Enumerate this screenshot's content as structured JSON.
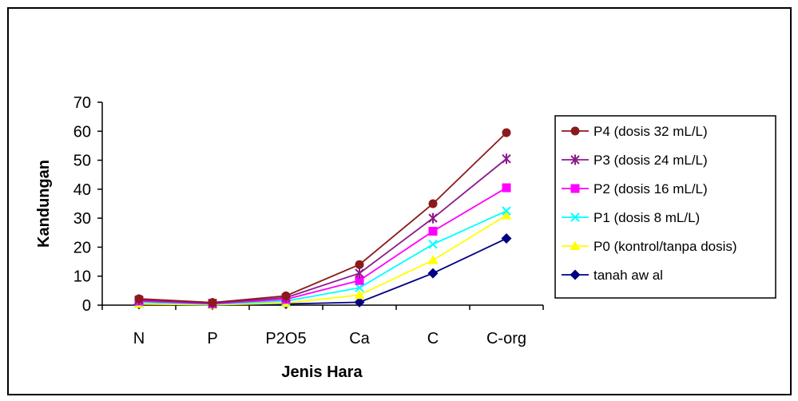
{
  "chart_data": {
    "type": "line",
    "title": "",
    "xlabel": "Jenis Hara",
    "ylabel": "Kandungan",
    "categories": [
      "N",
      "P",
      "P2O5",
      "Ca",
      "C",
      "C-org"
    ],
    "ylim": [
      0,
      70
    ],
    "yticks": [
      0,
      10,
      20,
      30,
      40,
      50,
      60,
      70
    ],
    "grid": false,
    "legend_position": "right",
    "series": [
      {
        "name": "P4 (dosis 32 mL/L)",
        "color": "#8B1A1A",
        "marker": "circle",
        "values": [
          2.2,
          0.9,
          3.2,
          14.0,
          35.0,
          59.5
        ]
      },
      {
        "name": "P3 (dosis 24 mL/L)",
        "color": "#8B1C8B",
        "marker": "asterisk",
        "values": [
          1.8,
          0.7,
          2.6,
          11.0,
          30.0,
          50.5
        ]
      },
      {
        "name": "P2 (dosis 16 mL/L)",
        "color": "#FF00FF",
        "marker": "square",
        "values": [
          1.4,
          0.5,
          2.0,
          8.5,
          25.5,
          40.5
        ]
      },
      {
        "name": "P1 (dosis 8 mL/L)",
        "color": "#00FFFF",
        "marker": "x",
        "values": [
          1.0,
          0.3,
          1.4,
          6.0,
          21.0,
          32.5
        ]
      },
      {
        "name": "P0 (kontrol/tanpa dosis)",
        "color": "#FFFF00",
        "marker": "triangle",
        "values": [
          0.4,
          0.1,
          0.7,
          3.5,
          15.5,
          31.0
        ]
      },
      {
        "name": "tanah aw al",
        "color": "#000080",
        "marker": "diamond",
        "values": [
          0.3,
          0.1,
          0.4,
          1.0,
          11.0,
          23.0
        ]
      }
    ]
  }
}
